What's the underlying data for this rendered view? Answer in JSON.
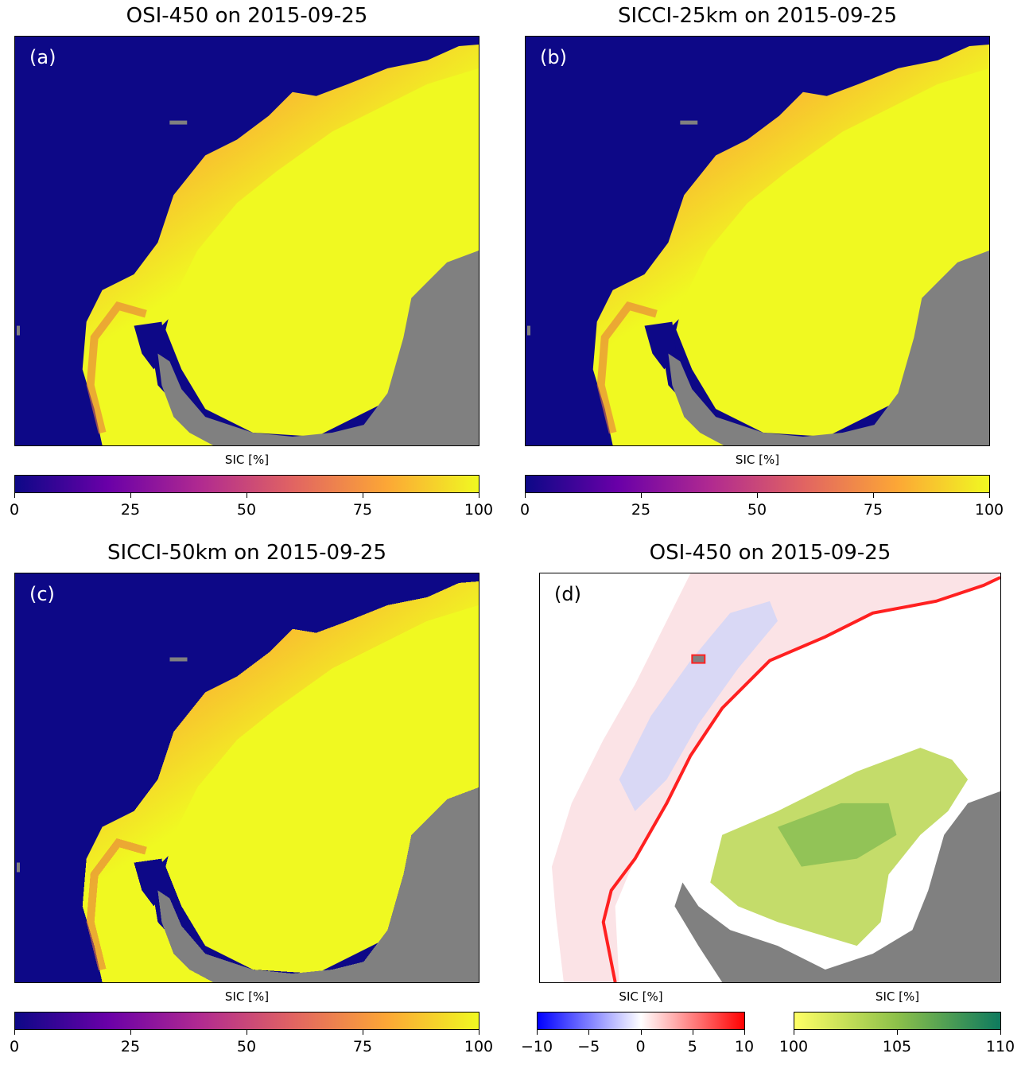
{
  "chart_data": [
    {
      "type": "heatmap",
      "panel": "(a)",
      "title": "OSI-450 on 2015-09-25",
      "colorbar": {
        "label": "SIC [%]",
        "range": [
          0,
          100
        ],
        "ticks": [
          "0",
          "25",
          "50",
          "75",
          "100"
        ],
        "colormap": [
          "#0d0887",
          "#6a00a8",
          "#b12a90",
          "#e16462",
          "#fca636",
          "#f0f921"
        ]
      }
    },
    {
      "type": "heatmap",
      "panel": "(b)",
      "title": "SICCI-25km on 2015-09-25",
      "colorbar": {
        "label": "SIC [%]",
        "range": [
          0,
          100
        ],
        "ticks": [
          "0",
          "25",
          "50",
          "75",
          "100"
        ],
        "colormap": [
          "#0d0887",
          "#6a00a8",
          "#b12a90",
          "#e16462",
          "#fca636",
          "#f0f921"
        ]
      }
    },
    {
      "type": "heatmap",
      "panel": "(c)",
      "title": "SICCI-50km on 2015-09-25",
      "colorbar": {
        "label": "SIC [%]",
        "range": [
          0,
          100
        ],
        "ticks": [
          "0",
          "25",
          "50",
          "75",
          "100"
        ],
        "colormap": [
          "#0d0887",
          "#6a00a8",
          "#b12a90",
          "#e16462",
          "#fca636",
          "#f0f921"
        ]
      }
    },
    {
      "type": "heatmap",
      "panel": "(d)",
      "title": "OSI-450 on 2015-09-25",
      "colorbars": [
        {
          "label": "SIC [%]",
          "range": [
            -10,
            10
          ],
          "ticks": [
            "−10",
            "−5",
            "0",
            "5",
            "10"
          ],
          "colormap": [
            "#0000ff",
            "#ffffff",
            "#ff0000"
          ]
        },
        {
          "label": "SIC [%]",
          "range": [
            100,
            110
          ],
          "ticks": [
            "100",
            "105",
            "110"
          ],
          "colormap": [
            "#ffff66",
            "#8cc04a",
            "#0e7a5e"
          ]
        }
      ]
    }
  ],
  "colors": {
    "ocean": "#0d0887",
    "land": "#808080",
    "ice": "#f0f921",
    "edge": "#fca636"
  }
}
